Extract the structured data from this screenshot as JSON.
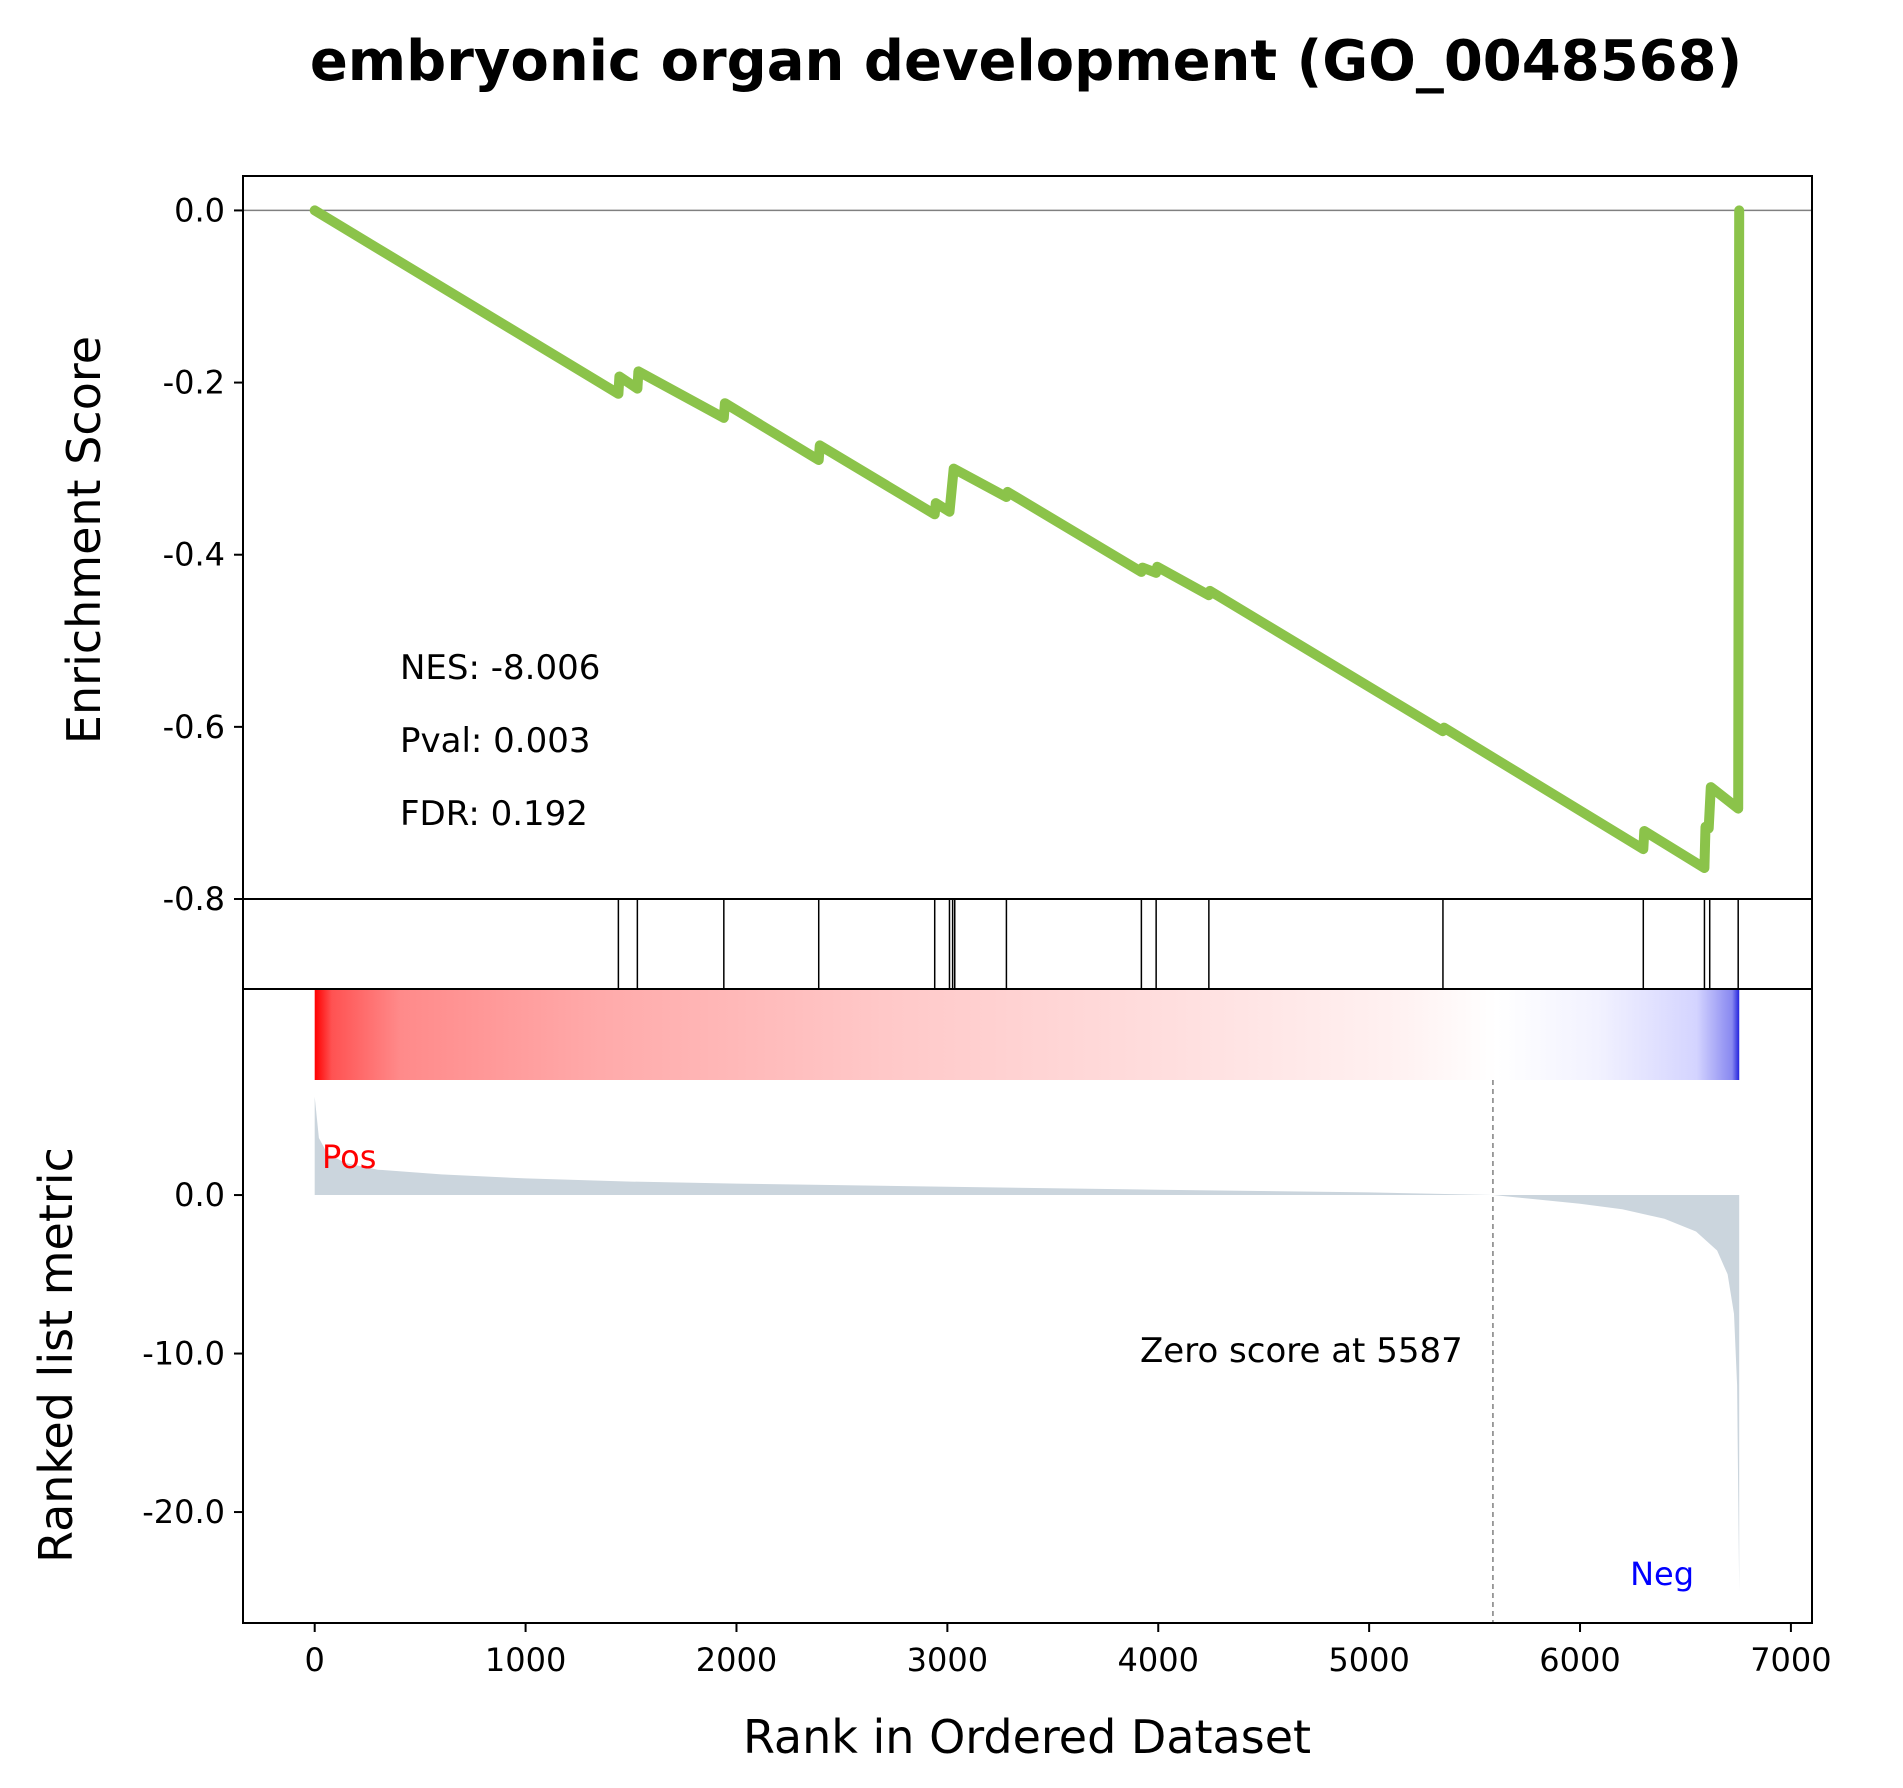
{
  "chart_data": {
    "type": "line",
    "title": "embryonic organ development (GO_0048568)",
    "xlabel": "Rank in Ordered Dataset",
    "xlim": [
      -340,
      7100
    ],
    "x_ticks": [
      "0",
      "1000",
      "2000",
      "3000",
      "4000",
      "5000",
      "6000",
      "7000"
    ],
    "x_tick_values": [
      0,
      1000,
      2000,
      3000,
      4000,
      5000,
      6000,
      7000
    ],
    "enrichment": {
      "ylabel": "Enrichment Score",
      "ylim": [
        -0.8,
        0.04
      ],
      "y_ticks": [
        "0.0",
        "-0.2",
        "-0.4",
        "-0.6",
        "-0.8"
      ],
      "y_tick_values": [
        0.0,
        -0.2,
        -0.4,
        -0.6,
        -0.8
      ],
      "line_color": "#8bc34a",
      "points": [
        [
          0,
          0.0
        ],
        [
          1440,
          -0.213
        ],
        [
          1445,
          -0.193
        ],
        [
          1530,
          -0.207
        ],
        [
          1535,
          -0.187
        ],
        [
          1940,
          -0.241
        ],
        [
          1945,
          -0.224
        ],
        [
          2390,
          -0.29
        ],
        [
          2395,
          -0.273
        ],
        [
          2940,
          -0.353
        ],
        [
          2945,
          -0.34
        ],
        [
          3010,
          -0.35
        ],
        [
          3030,
          -0.3
        ],
        [
          3280,
          -0.333
        ],
        [
          3285,
          -0.327
        ],
        [
          3920,
          -0.42
        ],
        [
          3925,
          -0.415
        ],
        [
          3990,
          -0.421
        ],
        [
          3995,
          -0.414
        ],
        [
          4240,
          -0.447
        ],
        [
          4245,
          -0.442
        ],
        [
          5350,
          -0.605
        ],
        [
          5355,
          -0.601
        ],
        [
          6300,
          -0.742
        ],
        [
          6305,
          -0.721
        ],
        [
          6590,
          -0.764
        ],
        [
          6595,
          -0.716
        ],
        [
          6610,
          -0.718
        ],
        [
          6620,
          -0.67
        ],
        [
          6750,
          -0.695
        ],
        [
          6755,
          0.0
        ]
      ],
      "annotations": [
        "NES: -8.006",
        "Pval: 0.003",
        "FDR: 0.192"
      ]
    },
    "hits": [
      1440,
      1530,
      1940,
      2390,
      2940,
      3010,
      3025,
      3035,
      3280,
      3920,
      3990,
      4240,
      5350,
      6300,
      6590,
      6615,
      6750
    ],
    "ranked_metric": {
      "ylabel": "Ranked list metric",
      "ylim": [
        -27,
        13
      ],
      "y_ticks": [
        "0.0",
        "-10.0",
        "-20.0"
      ],
      "y_tick_values": [
        0,
        -10,
        -20
      ],
      "fill_color": "#cbd5dd",
      "points": [
        [
          0,
          6.2
        ],
        [
          20,
          3.6
        ],
        [
          60,
          2.6
        ],
        [
          150,
          2.0
        ],
        [
          300,
          1.6
        ],
        [
          600,
          1.3
        ],
        [
          1000,
          1.05
        ],
        [
          1500,
          0.85
        ],
        [
          2000,
          0.72
        ],
        [
          3000,
          0.52
        ],
        [
          4000,
          0.34
        ],
        [
          5000,
          0.17
        ],
        [
          5587,
          0.0
        ],
        [
          5800,
          -0.28
        ],
        [
          6000,
          -0.55
        ],
        [
          6200,
          -0.9
        ],
        [
          6400,
          -1.5
        ],
        [
          6550,
          -2.3
        ],
        [
          6650,
          -3.5
        ],
        [
          6700,
          -5.0
        ],
        [
          6730,
          -7.5
        ],
        [
          6745,
          -12.0
        ],
        [
          6755,
          -25.0
        ]
      ],
      "zero_cross": 5587,
      "zero_label": "Zero score at 5587",
      "pos_label": "Pos",
      "neg_label": "Neg",
      "pos_color": "#ff0000",
      "neg_color": "#0000ff"
    }
  }
}
